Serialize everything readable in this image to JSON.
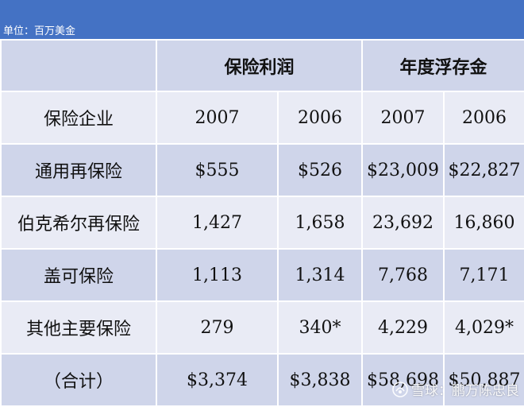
{
  "unit_label": "单位：百万美金",
  "header": {
    "blank": "",
    "group_profit": "保险利润",
    "group_float": "年度浮存金"
  },
  "rows": [
    {
      "label": "保险企业",
      "c1": "2007",
      "c2": "2006",
      "c3": "2007",
      "c4": "2006"
    },
    {
      "label": "通用再保险",
      "c1": "$555",
      "c2": "$526",
      "c3": "$23,009",
      "c4": "$22,827"
    },
    {
      "label": "伯克希尔再保险",
      "c1": "1,427",
      "c2": "1,658",
      "c3": "23,692",
      "c4": "16,860"
    },
    {
      "label": "盖可保险",
      "c1": "1,113",
      "c2": "1,314",
      "c3": "7,768",
      "c4": "7,171"
    },
    {
      "label": "其他主要保险",
      "c1": "279",
      "c2": "340*",
      "c3": "4,229",
      "c4": "4,029*"
    },
    {
      "label": "（合计）",
      "c1": "$3,374",
      "c2": "$3,838",
      "c3": "$58,698",
      "c4": "$50,887"
    }
  ],
  "watermark": {
    "text": "雪球：鹏万陈忠良",
    "icon": "snowball-logo-icon"
  }
}
